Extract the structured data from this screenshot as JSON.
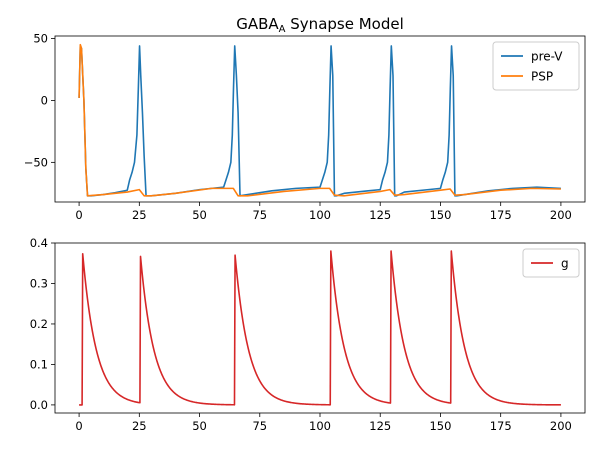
{
  "chart_data": [
    {
      "type": "line",
      "title": "GABA",
      "title_subscript": "A",
      "title_suffix": " Synapse Model",
      "xlim": [
        -10,
        210
      ],
      "ylim": [
        -82,
        52
      ],
      "xticks": [
        0,
        25,
        50,
        75,
        100,
        125,
        150,
        175,
        200
      ],
      "yticks": [
        -50,
        0,
        50
      ],
      "legend": "top-right",
      "grid": false,
      "series": [
        {
          "name": "pre-V",
          "color": "#1f77b4",
          "x": [
            0,
            0.5,
            1,
            2,
            2.8,
            3.5,
            5,
            10,
            15,
            20,
            21,
            22,
            23,
            24,
            24.6,
            25.1,
            25.6,
            26.3,
            27,
            27.8,
            30,
            40,
            50,
            60,
            61,
            62,
            63,
            63.6,
            64.1,
            64.6,
            65.3,
            66,
            66.8,
            70,
            80,
            90,
            100,
            101,
            102,
            103,
            103.6,
            104.1,
            104.6,
            105.3,
            106,
            106.8,
            110,
            120,
            125,
            126,
            127,
            128,
            128.6,
            129.1,
            129.6,
            130.3,
            131,
            131.8,
            135,
            145,
            150,
            151,
            152,
            153,
            153.6,
            154.1,
            154.6,
            155.3,
            156,
            156.8,
            160,
            170,
            180,
            190,
            200
          ],
          "y": [
            2,
            44,
            42,
            0,
            -55,
            -77,
            -77,
            -76,
            -74.5,
            -72.5,
            -64,
            -58,
            -50,
            -28,
            10,
            44,
            20,
            -10,
            -45,
            -77,
            -77,
            -75,
            -72,
            -70,
            -64,
            -58,
            -50,
            -28,
            10,
            44,
            20,
            -10,
            -77,
            -76,
            -73,
            -71,
            -70,
            -64,
            -58,
            -50,
            -28,
            10,
            44,
            20,
            -77,
            -77,
            -75,
            -73,
            -72,
            -64,
            -58,
            -50,
            -28,
            10,
            44,
            20,
            -77,
            -77,
            -74,
            -72,
            -71,
            -64,
            -58,
            -50,
            -28,
            10,
            44,
            20,
            -77,
            -77,
            -76,
            -73,
            -71,
            -70,
            -71
          ]
        },
        {
          "name": "PSP",
          "color": "#ff7f0e",
          "x": [
            0,
            0.5,
            1,
            2,
            2.8,
            3.5,
            10,
            20,
            25,
            27,
            30,
            40,
            55,
            64,
            66,
            70,
            85,
            100,
            104,
            106,
            110,
            125,
            129,
            131,
            135,
            150,
            154,
            156,
            160,
            175,
            188,
            200
          ],
          "y": [
            2,
            45,
            42,
            0,
            -55,
            -77,
            -76,
            -74,
            -72,
            -77,
            -77,
            -75,
            -71,
            -71,
            -77,
            -77,
            -73.5,
            -71,
            -71,
            -76.5,
            -77,
            -73.5,
            -72,
            -76.5,
            -76,
            -72.5,
            -71.5,
            -76.5,
            -76,
            -72.5,
            -71,
            -71.5
          ]
        }
      ]
    },
    {
      "type": "line",
      "xlim": [
        -10,
        210
      ],
      "ylim": [
        -0.02,
        0.4
      ],
      "xticks": [
        0,
        25,
        50,
        75,
        100,
        125,
        150,
        175,
        200
      ],
      "yticks": [
        0.0,
        0.1,
        0.2,
        0.3,
        0.4
      ],
      "legend": "top-right",
      "grid": false,
      "spikes": [
        1.4,
        25.3,
        64.6,
        104.5,
        129.5,
        154.5
      ],
      "decay_tau": 5.6,
      "peak": 0.38,
      "series": [
        {
          "name": "g",
          "color": "#d62728"
        }
      ]
    }
  ]
}
